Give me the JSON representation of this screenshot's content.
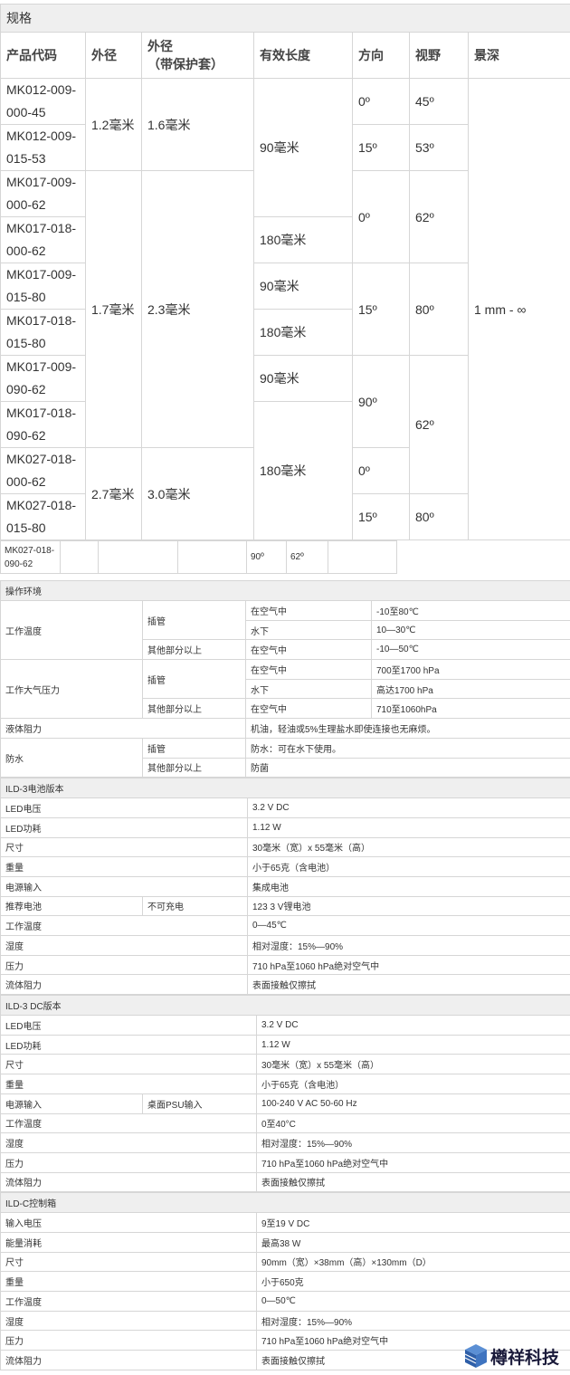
{
  "spec": {
    "title": "规格",
    "headers": [
      "产品代码",
      "外径",
      "外径\n（带保护套）",
      "有效长度",
      "方向",
      "视野",
      "景深"
    ],
    "codes": [
      "MK012-009-000-45",
      "MK012-009-015-53",
      "MK017-009-000-62",
      "MK017-018-000-62",
      "MK017-009-015-80",
      "MK017-018-015-80",
      "MK017-009-090-62",
      "MK017-018-090-62",
      "MK027-018-000-62",
      "MK027-018-015-80"
    ],
    "od": [
      "1.2毫米",
      "1.7毫米",
      "2.7毫米"
    ],
    "od_sheath": [
      "1.6毫米",
      "2.3毫米",
      "3.0毫米"
    ],
    "length": [
      "90毫米",
      "180毫米",
      "90毫米",
      "180毫米",
      "90毫米",
      "180毫米"
    ],
    "direction": [
      "0º",
      "15º",
      "0º",
      "15º",
      "90º",
      "0º",
      "15º"
    ],
    "fov": [
      "45º",
      "53º",
      "62º",
      "80º",
      "62º",
      "80º"
    ],
    "dof": "1 mm - ∞"
  },
  "extra_row": {
    "code": "MK027-018-090-62",
    "direction": "90º",
    "fov": "62º"
  },
  "env": {
    "title": "操作环境",
    "temp": "工作温度",
    "pressure": "工作大气压力",
    "fluid": "液体阻力",
    "water": "防水",
    "tube": "插管",
    "other": "其他部分以上",
    "air": "在空气中",
    "under": "水下",
    "temp_vals": [
      "-10至80℃",
      "10—30℃",
      "-10—50℃"
    ],
    "pressure_vals": [
      "700至1700 hPa",
      "高达1700 hPa",
      "710至1060hPa"
    ],
    "fluid_val": "机油，轻油或5%生理盐水即使连接也无麻烦。",
    "water_tube": "防水：可在水下使用。",
    "water_other": "防菌"
  },
  "battery": {
    "title": "ILD-3电池版本",
    "rows": [
      [
        "LED电压",
        "3.2 V DC"
      ],
      [
        "LED功耗",
        "1.12 W"
      ],
      [
        "尺寸",
        "30毫米（宽）x 55毫米（高）"
      ],
      [
        "重量",
        "小于65克（含电池）"
      ],
      [
        "电源输入",
        "集成电池"
      ],
      [
        "推荐电池",
        "123 3 V锂电池"
      ],
      [
        "工作温度",
        "0—45℃"
      ],
      [
        "湿度",
        "相对湿度：15%—90%"
      ],
      [
        "压力",
        "710 hPa至1060 hPa绝对空气中"
      ],
      [
        "流体阻力",
        "表面接触仅擦拭"
      ]
    ],
    "sub": "不可充电"
  },
  "dc": {
    "title": "ILD-3 DC版本",
    "rows": [
      [
        "LED电压",
        "3.2 V DC"
      ],
      [
        "LED功耗",
        "1.12 W"
      ],
      [
        "尺寸",
        "30毫米（宽）x 55毫米（高）"
      ],
      [
        "重量",
        "小于65克（含电池）"
      ],
      [
        "电源输入",
        "100-240 V AC 50-60 Hz"
      ],
      [
        "工作温度",
        "0至40°C"
      ],
      [
        "湿度",
        "相对湿度：15%—90%"
      ],
      [
        "压力",
        "710 hPa至1060 hPa绝对空气中"
      ],
      [
        "流体阻力",
        "表面接触仅擦拭"
      ]
    ],
    "sub": "桌面PSU输入"
  },
  "ildc": {
    "title": "ILD-C控制箱",
    "rows": [
      [
        "输入电压",
        "9至19 V DC"
      ],
      [
        "能量消耗",
        "最高38 W"
      ],
      [
        "尺寸",
        "90mm（宽）×38mm（高）×130mm（D）"
      ],
      [
        "重量",
        "小于650克"
      ],
      [
        "工作温度",
        "0—50℃"
      ],
      [
        "湿度",
        "相对湿度：15%—90%"
      ],
      [
        "压力",
        "710 hPa至1060 hPa绝对空气中"
      ],
      [
        "流体阻力",
        "表面接触仅擦拭"
      ]
    ]
  },
  "logo": {
    "text": "樽祥科技",
    "color": "#3a6fb5"
  }
}
